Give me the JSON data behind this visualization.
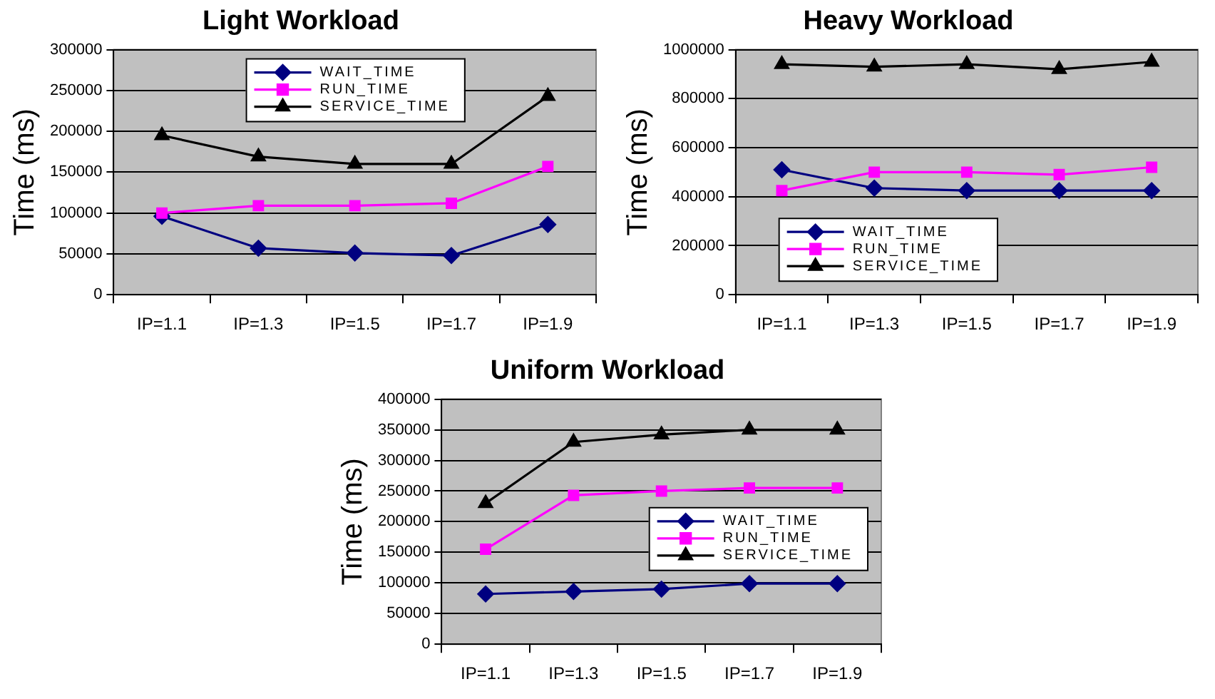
{
  "chart_data": [
    {
      "type": "line",
      "title": "Light Workload",
      "ylabel": "Time (ms)",
      "categories": [
        "IP=1.1",
        "IP=1.3",
        "IP=1.5",
        "IP=1.7",
        "IP=1.9"
      ],
      "ylim": [
        0,
        300000
      ],
      "yticks": [
        0,
        50000,
        100000,
        150000,
        200000,
        250000,
        300000
      ],
      "grid": "y",
      "legend": "top",
      "series": [
        {
          "name": "WAIT_TIME",
          "color": "#000080",
          "marker": "diamond",
          "values": [
            96000,
            57000,
            51000,
            48000,
            86000
          ]
        },
        {
          "name": "RUN_TIME",
          "color": "#ff00ff",
          "marker": "square",
          "values": [
            100000,
            109000,
            109000,
            112000,
            157000
          ]
        },
        {
          "name": "SERVICE_TIME",
          "color": "#000000",
          "marker": "triangle",
          "values": [
            195000,
            169000,
            160000,
            160000,
            243000
          ]
        }
      ]
    },
    {
      "type": "line",
      "title": "Heavy Workload",
      "ylabel": "Time (ms)",
      "categories": [
        "IP=1.1",
        "IP=1.3",
        "IP=1.5",
        "IP=1.7",
        "IP=1.9"
      ],
      "ylim": [
        0,
        1000000
      ],
      "yticks": [
        0,
        200000,
        400000,
        600000,
        800000,
        1000000
      ],
      "grid": "y",
      "legend": "bottom left",
      "series": [
        {
          "name": "WAIT_TIME",
          "color": "#000080",
          "marker": "diamond",
          "values": [
            510000,
            435000,
            425000,
            425000,
            425000
          ]
        },
        {
          "name": "RUN_TIME",
          "color": "#ff00ff",
          "marker": "square",
          "values": [
            425000,
            500000,
            500000,
            490000,
            520000
          ]
        },
        {
          "name": "SERVICE_TIME",
          "color": "#000000",
          "marker": "triangle",
          "values": [
            940000,
            930000,
            940000,
            920000,
            950000
          ]
        }
      ]
    },
    {
      "type": "line",
      "title": "Uniform Workload",
      "ylabel": "Time (ms)",
      "categories": [
        "IP=1.1",
        "IP=1.3",
        "IP=1.5",
        "IP=1.7",
        "IP=1.9"
      ],
      "ylim": [
        0,
        400000
      ],
      "yticks": [
        0,
        50000,
        100000,
        150000,
        200000,
        250000,
        300000,
        350000,
        400000
      ],
      "grid": "y",
      "legend": "right",
      "series": [
        {
          "name": "WAIT_TIME",
          "color": "#000080",
          "marker": "diamond",
          "values": [
            82000,
            86000,
            90000,
            99000,
            99000
          ]
        },
        {
          "name": "RUN_TIME",
          "color": "#ff00ff",
          "marker": "square",
          "values": [
            155000,
            243000,
            250000,
            255000,
            255000
          ]
        },
        {
          "name": "SERVICE_TIME",
          "color": "#000000",
          "marker": "triangle",
          "values": [
            230000,
            330000,
            342000,
            350000,
            350000
          ]
        }
      ]
    }
  ]
}
